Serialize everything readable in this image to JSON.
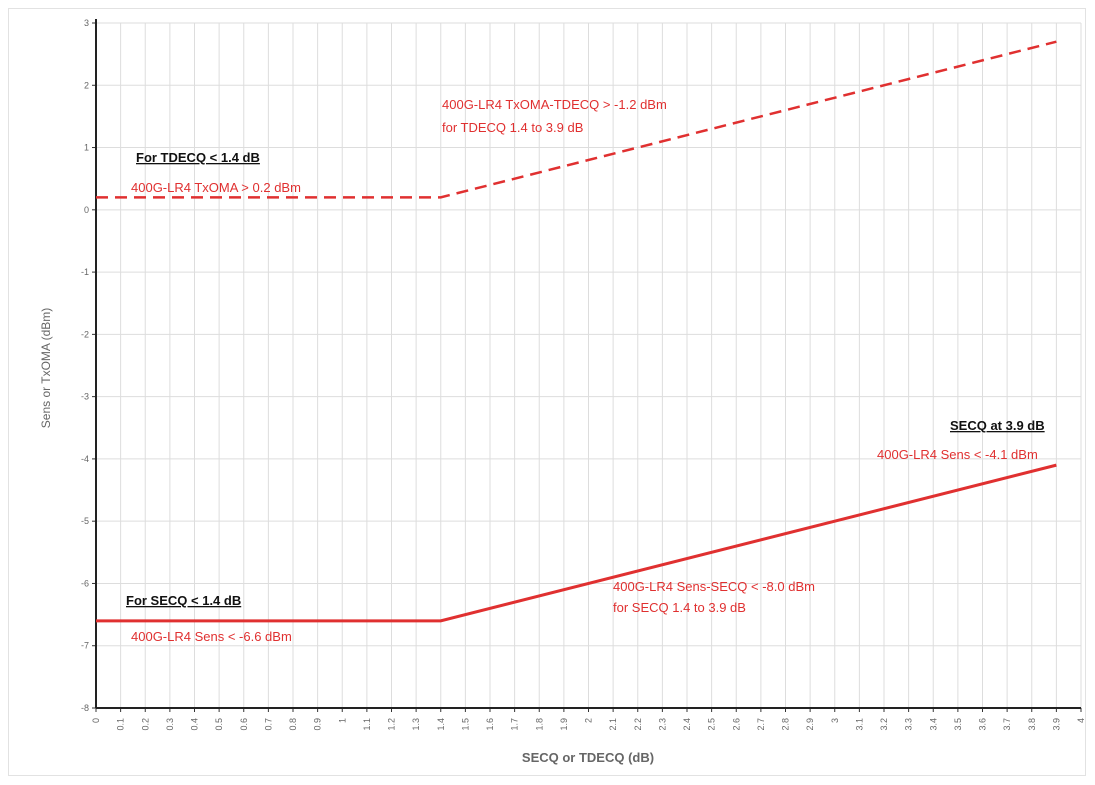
{
  "chart_data": {
    "type": "line",
    "xlabel": "SECQ or TDECQ (dB)",
    "ylabel": "Sens or TxOMA (dBm)",
    "xlim": [
      0,
      4
    ],
    "ylim": [
      -8,
      3
    ],
    "x_ticks": [
      "0",
      "0.1",
      "0.2",
      "0.3",
      "0.4",
      "0.5",
      "0.6",
      "0.7",
      "0.8",
      "0.9",
      "1",
      "1.1",
      "1.2",
      "1.3",
      "1.4",
      "1.5",
      "1.6",
      "1.7",
      "1.8",
      "1.9",
      "2",
      "2.1",
      "2.2",
      "2.3",
      "2.4",
      "2.5",
      "2.6",
      "2.7",
      "2.8",
      "2.9",
      "3",
      "3.1",
      "3.2",
      "3.3",
      "3.4",
      "3.5",
      "3.6",
      "3.7",
      "3.8",
      "3.9",
      "4"
    ],
    "y_ticks": [
      "3",
      "2",
      "1",
      "0",
      "-1",
      "-2",
      "-3",
      "-4",
      "-5",
      "-6",
      "-7",
      "-8"
    ],
    "grid": true,
    "series": [
      {
        "style": "dashed",
        "color": "#e03030",
        "x": [
          0,
          1.4,
          3.9
        ],
        "y": [
          0.2,
          0.2,
          2.7
        ]
      },
      {
        "style": "solid",
        "color": "#e03030",
        "x": [
          0,
          1.4,
          3.9
        ],
        "y": [
          -6.6,
          -6.6,
          -4.1
        ]
      }
    ],
    "annotations": {
      "tdecq_head": "For TDECQ < 1.4 dB",
      "tdecq_low": "400G-LR4 TxOMA > 0.2 dBm",
      "tdecq_range_1": "400G-LR4 TxOMA-TDECQ > -1.2 dBm",
      "tdecq_range_2": "for TDECQ 1.4 to 3.9 dB",
      "secq_head_high": "SECQ at 3.9 dB",
      "secq_high": "400G-LR4 Sens < -4.1 dBm",
      "secq_range_1": "400G-LR4 Sens-SECQ < -8.0 dBm",
      "secq_range_2": "for SECQ 1.4 to 3.9 dB",
      "secq_head_low": "For SECQ < 1.4 dB",
      "secq_low": "400G-LR4 Sens < -6.6 dBm"
    }
  }
}
